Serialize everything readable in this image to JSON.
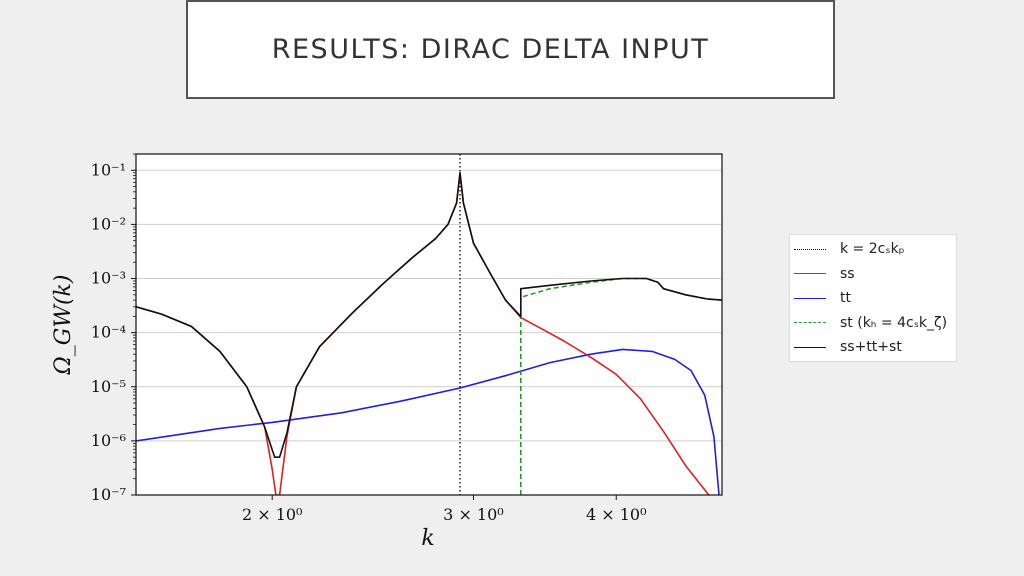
{
  "slide": {
    "title": "RESULTS: DIRAC DELTA INPUT"
  },
  "chart_data": {
    "type": "line",
    "title": "",
    "xlabel": "k",
    "ylabel": "Ω_GW(k)",
    "xscale": "log",
    "yscale": "log",
    "xlim": [
      1.52,
      4.95
    ],
    "ylim": [
      1e-07,
      0.2
    ],
    "grid": "horizontal",
    "legend_position": "right, outside plot",
    "y_ticks": [
      {
        "value": 1e-07,
        "label": "10⁻⁷"
      },
      {
        "value": 1e-06,
        "label": "10⁻⁶"
      },
      {
        "value": 1e-05,
        "label": "10⁻⁵"
      },
      {
        "value": 0.0001,
        "label": "10⁻⁴"
      },
      {
        "value": 0.001,
        "label": "10⁻³"
      },
      {
        "value": 0.01,
        "label": "10⁻²"
      },
      {
        "value": 0.1,
        "label": "10⁻¹"
      }
    ],
    "x_ticks": [
      {
        "value": 2,
        "label": "2 × 10⁰"
      },
      {
        "value": 3,
        "label": "3 × 10⁰"
      },
      {
        "value": 4,
        "label": "4 × 10⁰"
      }
    ],
    "vline": {
      "name": "k = 2c_s k_p",
      "x": 2.92
    },
    "series": [
      {
        "name": "ss",
        "color": "#e02020",
        "style": "solid",
        "points": [
          [
            1.52,
            0.0003
          ],
          [
            1.6,
            0.00022
          ],
          [
            1.7,
            0.00013
          ],
          [
            1.8,
            4.5e-05
          ],
          [
            1.9,
            1e-05
          ],
          [
            1.97,
            1.8e-06
          ],
          [
            2.0,
            3e-07
          ],
          [
            2.015,
            1e-07
          ],
          [
            2.03,
            1e-07
          ],
          [
            2.06,
            1.2e-06
          ],
          [
            2.1,
            1e-05
          ],
          [
            2.2,
            5.5e-05
          ],
          [
            2.35,
            0.00023
          ],
          [
            2.5,
            0.0008
          ],
          [
            2.65,
            0.0024
          ],
          [
            2.78,
            0.0055
          ],
          [
            2.85,
            0.01
          ],
          [
            2.9,
            0.025
          ],
          [
            2.92,
            0.09
          ],
          [
            2.94,
            0.025
          ],
          [
            3.0,
            0.0045
          ],
          [
            3.1,
            0.0013
          ],
          [
            3.2,
            0.0004
          ],
          [
            3.3,
            0.00019
          ],
          [
            3.45,
            0.000115
          ],
          [
            3.6,
            7e-05
          ],
          [
            3.8,
            3.5e-05
          ],
          [
            4.0,
            1.7e-05
          ],
          [
            4.2,
            6e-06
          ],
          [
            4.4,
            1.5e-06
          ],
          [
            4.6,
            3.5e-07
          ],
          [
            4.82,
            1e-07
          ]
        ]
      },
      {
        "name": "tt",
        "color": "#2020e0",
        "style": "solid",
        "points": [
          [
            1.52,
            1e-06
          ],
          [
            1.8,
            1.7e-06
          ],
          [
            2.0,
            2.2e-06
          ],
          [
            2.3,
            3.3e-06
          ],
          [
            2.6,
            5.5e-06
          ],
          [
            2.92,
            9.5e-06
          ],
          [
            3.2,
            1.6e-05
          ],
          [
            3.5,
            2.8e-05
          ],
          [
            3.8,
            4e-05
          ],
          [
            4.05,
            4.9e-05
          ],
          [
            4.3,
            4.5e-05
          ],
          [
            4.5,
            3.2e-05
          ],
          [
            4.65,
            2e-05
          ],
          [
            4.78,
            7e-06
          ],
          [
            4.87,
            1.2e-06
          ],
          [
            4.92,
            1e-07
          ]
        ]
      },
      {
        "name": "st (k_h = 4c_s k_ζ)",
        "color": "#2a9a2a",
        "style": "dashed",
        "points": [
          [
            3.3,
            1e-07
          ],
          [
            3.3,
            1e-06
          ],
          [
            3.3,
            0.0001
          ],
          [
            3.3,
            0.00045
          ],
          [
            3.5,
            0.00065
          ],
          [
            3.8,
            0.00085
          ],
          [
            4.05,
            0.001
          ],
          [
            4.25,
            0.001
          ],
          [
            4.35,
            0.00085
          ],
          [
            4.4,
            0.00065
          ],
          [
            4.6,
            0.0005
          ],
          [
            4.8,
            0.00042
          ],
          [
            4.95,
            0.0004
          ]
        ]
      },
      {
        "name": "ss+tt+st",
        "color": "#111111",
        "style": "solid",
        "points": [
          [
            1.52,
            0.0003
          ],
          [
            1.6,
            0.00022
          ],
          [
            1.7,
            0.00013
          ],
          [
            1.8,
            4.5e-05
          ],
          [
            1.9,
            1e-05
          ],
          [
            1.97,
            1.8e-06
          ],
          [
            2.01,
            5e-07
          ],
          [
            2.03,
            5e-07
          ],
          [
            2.06,
            1.4e-06
          ],
          [
            2.1,
            1e-05
          ],
          [
            2.2,
            5.5e-05
          ],
          [
            2.35,
            0.00023
          ],
          [
            2.5,
            0.0008
          ],
          [
            2.65,
            0.0024
          ],
          [
            2.78,
            0.0055
          ],
          [
            2.85,
            0.01
          ],
          [
            2.9,
            0.025
          ],
          [
            2.92,
            0.09
          ],
          [
            2.94,
            0.025
          ],
          [
            3.0,
            0.0045
          ],
          [
            3.1,
            0.0013
          ],
          [
            3.2,
            0.0004
          ],
          [
            3.3,
            0.0002
          ],
          [
            3.3,
            0.00065
          ],
          [
            3.5,
            0.00075
          ],
          [
            3.8,
            0.0009
          ],
          [
            4.05,
            0.001
          ],
          [
            4.25,
            0.001
          ],
          [
            4.35,
            0.00085
          ],
          [
            4.4,
            0.00065
          ],
          [
            4.6,
            0.0005
          ],
          [
            4.8,
            0.00042
          ],
          [
            4.95,
            0.0004
          ]
        ]
      }
    ]
  },
  "legend": {
    "items": [
      {
        "label": "k = 2cₛkₚ",
        "color": "#111111",
        "style": "dotted"
      },
      {
        "label": "ss",
        "color": "#e02020",
        "style": "solid"
      },
      {
        "label": "tt",
        "color": "#2020e0",
        "style": "solid"
      },
      {
        "label": "st (kₕ = 4cₛk_ζ)",
        "color": "#2a9a2a",
        "style": "dashed"
      },
      {
        "label": "ss+tt+st",
        "color": "#111111",
        "style": "solid"
      }
    ]
  }
}
